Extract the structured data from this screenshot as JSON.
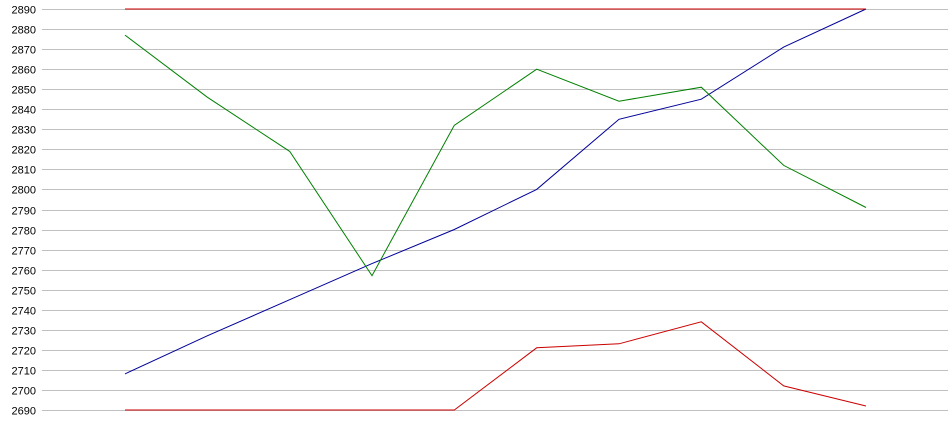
{
  "chart_data": {
    "type": "line",
    "title": "",
    "xlabel": "",
    "ylabel": "",
    "ylim": [
      2690,
      2890
    ],
    "yticks": [
      2690,
      2700,
      2710,
      2720,
      2730,
      2740,
      2750,
      2760,
      2770,
      2780,
      2790,
      2800,
      2810,
      2820,
      2830,
      2840,
      2850,
      2860,
      2870,
      2880,
      2890
    ],
    "grid": true,
    "legend": "none",
    "x": [
      1,
      2,
      3,
      4,
      5,
      6,
      7,
      8,
      9,
      10
    ],
    "series": [
      {
        "color": "#000099",
        "values": [
          2708,
          2727,
          2745,
          2763,
          2780,
          2800,
          2835,
          2845,
          2871,
          2890
        ]
      },
      {
        "color": "#008000",
        "values": [
          2877,
          2846,
          2819,
          2757,
          2832,
          2860,
          2844,
          2851,
          2812,
          2791
        ]
      },
      {
        "color": "#cc0000",
        "values": [
          2890,
          2890,
          2890,
          2890,
          2890,
          2890,
          2890,
          2890,
          2890,
          2890
        ]
      },
      {
        "color": "#cc0000",
        "values": [
          2690,
          2690,
          2690,
          2690,
          2690,
          2721,
          2723,
          2734,
          2702,
          2692
        ]
      }
    ],
    "gridColor": "#c0c0c0"
  }
}
